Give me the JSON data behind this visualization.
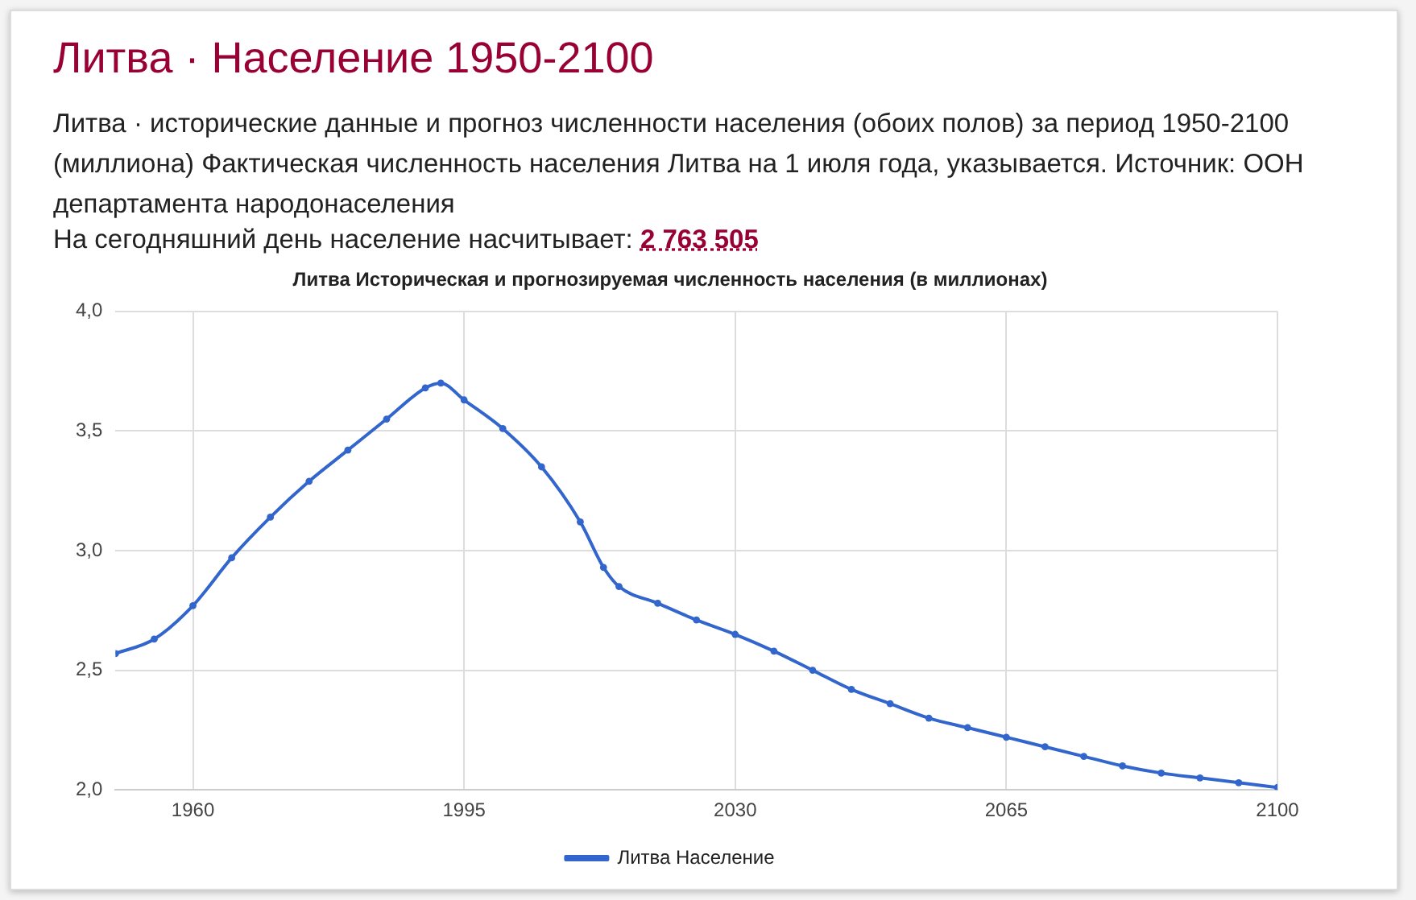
{
  "chart_data": {
    "type": "line",
    "title": "Литва · Население 1950-2100",
    "subtitle": "Литва · исторические данные и прогноз численности населения (обоих полов) за период 1950-2100 (миллиона) Фактическая численность населения Литва на 1 июля года, указывается. Источник: ООН департамента народонаселения",
    "annotations": [
      "Литва Историческая и прогнозируемая численность населения (в миллионах)",
      "На  сегодняшний день население насчитывает: 2 763 505"
    ],
    "x": [
      1950,
      1955,
      1960,
      1965,
      1970,
      1975,
      1980,
      1985,
      1990,
      1992,
      1995,
      2000,
      2005,
      2010,
      2013,
      2015,
      2020,
      2025,
      2030,
      2035,
      2040,
      2045,
      2050,
      2055,
      2060,
      2065,
      2070,
      2075,
      2080,
      2085,
      2090,
      2095,
      2100
    ],
    "series": [
      {
        "name": "Литва Население",
        "color": "#3366cc",
        "values": [
          2.57,
          2.63,
          2.77,
          2.97,
          3.14,
          3.29,
          3.42,
          3.55,
          3.68,
          3.7,
          3.63,
          3.51,
          3.35,
          3.12,
          2.93,
          2.85,
          2.78,
          2.71,
          2.65,
          2.58,
          2.5,
          2.42,
          2.36,
          2.3,
          2.26,
          2.22,
          2.18,
          2.14,
          2.1,
          2.07,
          2.05,
          2.03,
          2.01
        ]
      }
    ],
    "xlim": [
      1950,
      2100
    ],
    "xticks": [
      1960,
      1995,
      2030,
      2065,
      2100
    ],
    "ylim": [
      2,
      4
    ],
    "yticks": [
      {
        "value": 2,
        "label": "2,0"
      },
      {
        "value": 2.5,
        "label": "2,5"
      },
      {
        "value": 3,
        "label": "3,0"
      },
      {
        "value": 3.5,
        "label": "3,5"
      },
      {
        "value": 4,
        "label": "4,0"
      }
    ],
    "grid": true,
    "legend": "bottom",
    "marker": "circle",
    "line_style": "solid"
  }
}
